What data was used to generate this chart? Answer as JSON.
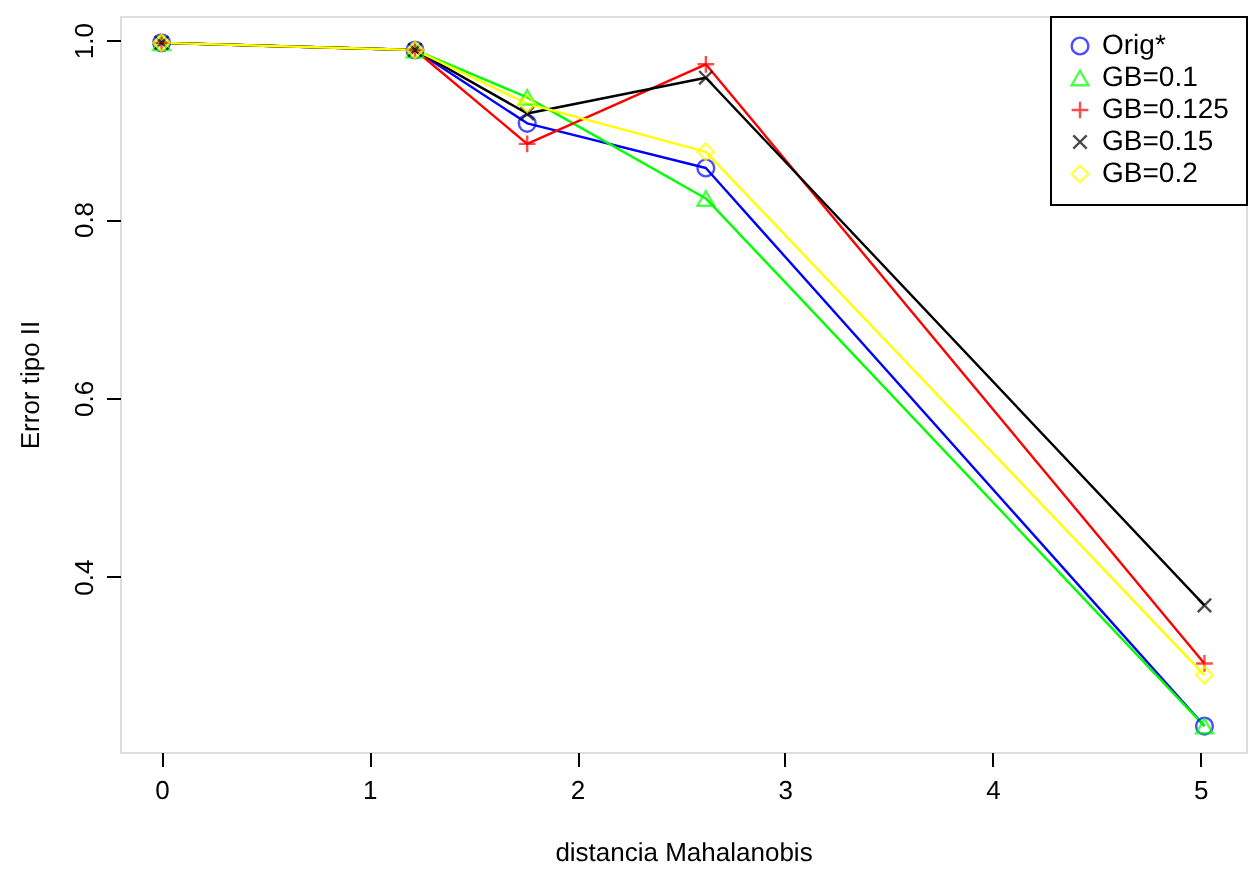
{
  "chart_data": {
    "type": "line",
    "xlabel": "distancia Mahalanobis",
    "ylabel": "Error tipo II",
    "x": [
      0,
      1.22,
      1.76,
      2.62,
      5.02
    ],
    "series": [
      {
        "name": "Orig*",
        "color": "#0000ff",
        "marker": "circle",
        "values": [
          0.997,
          0.989,
          0.907,
          0.857,
          0.233
        ]
      },
      {
        "name": "GB=0.1",
        "color": "#00ff00",
        "marker": "triangle",
        "values": [
          0.997,
          0.989,
          0.936,
          0.823,
          0.233
        ]
      },
      {
        "name": "GB=0.125",
        "color": "#ff0000",
        "marker": "cross",
        "values": [
          0.997,
          0.989,
          0.884,
          0.973,
          0.303
        ]
      },
      {
        "name": "GB=0.15",
        "color": "#000000",
        "marker": "x",
        "values": [
          0.997,
          0.989,
          0.918,
          0.958,
          0.368
        ]
      },
      {
        "name": "GB=0.2",
        "color": "#ffff00",
        "marker": "diamond",
        "values": [
          0.997,
          0.989,
          0.929,
          0.875,
          0.29
        ]
      }
    ],
    "xlim": [
      -0.2,
      5.22
    ],
    "ylim": [
      0.204,
      1.027
    ],
    "xticks": [
      0,
      1,
      2,
      3,
      4,
      5
    ],
    "yticks": [
      {
        "value": 0.4,
        "label": "0.4"
      },
      {
        "value": 0.6,
        "label": "0.6"
      },
      {
        "value": 0.8,
        "label": "0.8"
      },
      {
        "value": 1,
        "label": "1.0"
      }
    ],
    "grid": false,
    "legend": "top right",
    "line_style": "solid"
  }
}
